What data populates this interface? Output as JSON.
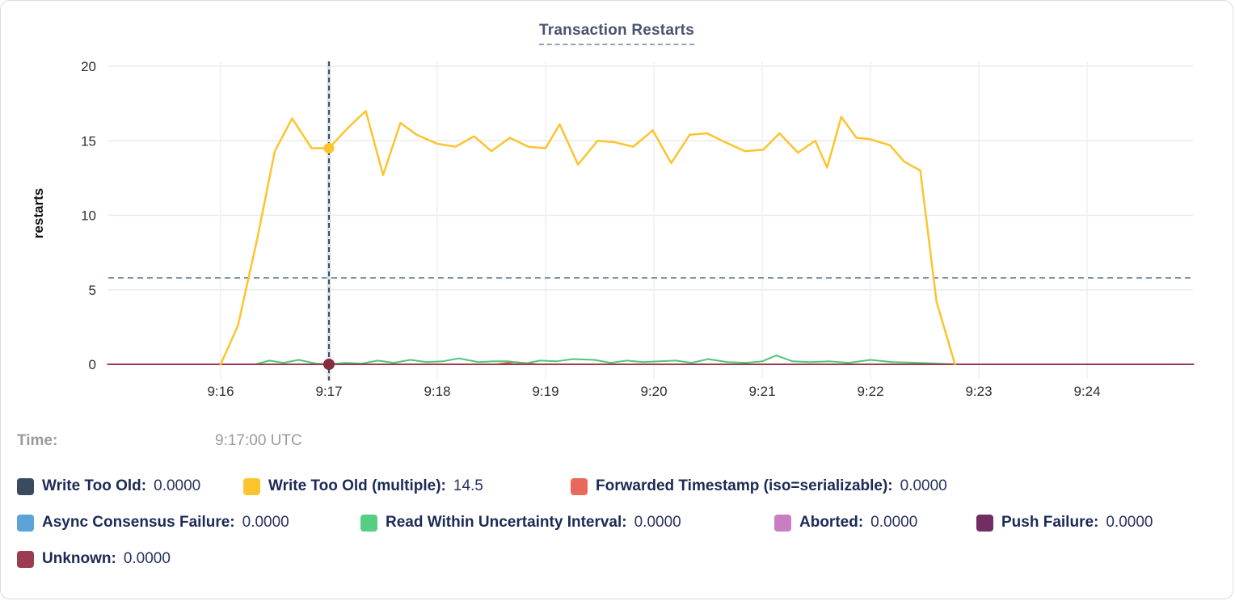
{
  "tooltip": {
    "time_label": "Time:",
    "time_value": "9:17:00 UTC"
  },
  "legend": {
    "rows": [
      {
        "items": [
          {
            "name": "write-too-old",
            "label": "Write Too Old:",
            "value": "0.0000",
            "color": "#3b4a5e"
          },
          {
            "name": "write-too-old-multiple",
            "label": "Write Too Old (multiple):",
            "value": "14.5",
            "color": "#fcc42d"
          },
          {
            "name": "forwarded-timestamp",
            "label": "Forwarded Timestamp (iso=serializable):",
            "value": "0.0000",
            "color": "#e8685c"
          }
        ]
      },
      {
        "items": [
          {
            "name": "async-consensus-failure",
            "label": "Async Consensus Failure:",
            "value": "0.0000",
            "color": "#5ea2da"
          },
          {
            "name": "read-within-uncertainty-interval",
            "label": "Read Within Uncertainty Interval:",
            "value": "0.0000",
            "color": "#57cd82"
          },
          {
            "name": "aborted",
            "label": "Aborted:",
            "value": "0.0000",
            "color": "#c97ec4"
          },
          {
            "name": "push-failure",
            "label": "Push Failure:",
            "value": "0.0000",
            "color": "#722e62"
          }
        ]
      },
      {
        "items": [
          {
            "name": "unknown",
            "label": "Unknown:",
            "value": "0.0000",
            "color": "#9c3c50"
          }
        ]
      }
    ]
  },
  "chart_data": {
    "type": "line",
    "title": "Transaction Restarts",
    "y_axis": {
      "label": "restarts",
      "ticks": [
        0,
        5,
        10,
        15,
        20
      ],
      "range": [
        0,
        20
      ]
    },
    "x_axis": {
      "label": "",
      "ticks": [
        "9:16",
        "9:17",
        "9:18",
        "9:19",
        "9:20",
        "9:21",
        "9:22",
        "9:23",
        "9:24"
      ]
    },
    "grid": true,
    "legend_position": "bottom",
    "threshold_value": 5.8,
    "crosshair": {
      "t": 1,
      "time": "9:17:00 UTC"
    },
    "series": [
      {
        "name": "write-too-old",
        "label": "Write Too Old",
        "color": "#3b4a5e",
        "width": 2,
        "points": [
          [
            -1.04,
            0
          ],
          [
            8.98,
            0
          ]
        ]
      },
      {
        "name": "async-consensus-failure",
        "label": "Async Consensus Failure",
        "color": "#5ea2da",
        "width": 2,
        "points": [
          [
            -1.04,
            0
          ],
          [
            8.98,
            0
          ]
        ]
      },
      {
        "name": "aborted",
        "label": "Aborted",
        "color": "#c97ec4",
        "width": 2,
        "points": [
          [
            -1.04,
            0
          ],
          [
            8.98,
            0
          ]
        ]
      },
      {
        "name": "push-failure",
        "label": "Push Failure",
        "color": "#722e62",
        "width": 2,
        "points": [
          [
            -1.04,
            0
          ],
          [
            8.98,
            0
          ]
        ]
      },
      {
        "name": "forwarded-timestamp",
        "label": "Forwarded Timestamp (iso=serializable)",
        "color": "#e0544c",
        "width": 2,
        "points": [
          [
            -1.04,
            0
          ],
          [
            2.55,
            0
          ],
          [
            2.72,
            0.15
          ],
          [
            2.92,
            0
          ],
          [
            8.98,
            0
          ]
        ]
      },
      {
        "name": "read-within-uncertainty-interval",
        "label": "Read Within Uncertainty Interval",
        "color": "#4dc779",
        "width": 2,
        "points": [
          [
            0.32,
            0
          ],
          [
            0.45,
            0.25
          ],
          [
            0.58,
            0.1
          ],
          [
            0.72,
            0.3
          ],
          [
            0.88,
            0.05
          ],
          [
            1,
            0
          ],
          [
            1.15,
            0.1
          ],
          [
            1.3,
            0.05
          ],
          [
            1.45,
            0.25
          ],
          [
            1.6,
            0.1
          ],
          [
            1.75,
            0.3
          ],
          [
            1.9,
            0.15
          ],
          [
            2.05,
            0.2
          ],
          [
            2.2,
            0.4
          ],
          [
            2.38,
            0.15
          ],
          [
            2.52,
            0.2
          ],
          [
            2.66,
            0.2
          ],
          [
            2.8,
            0.05
          ],
          [
            2.95,
            0.25
          ],
          [
            3.1,
            0.2
          ],
          [
            3.25,
            0.35
          ],
          [
            3.45,
            0.3
          ],
          [
            3.6,
            0.1
          ],
          [
            3.75,
            0.25
          ],
          [
            3.9,
            0.15
          ],
          [
            4.05,
            0.2
          ],
          [
            4.2,
            0.25
          ],
          [
            4.35,
            0.1
          ],
          [
            4.5,
            0.35
          ],
          [
            4.68,
            0.15
          ],
          [
            4.85,
            0.1
          ],
          [
            5,
            0.2
          ],
          [
            5.13,
            0.6
          ],
          [
            5.28,
            0.2
          ],
          [
            5.45,
            0.15
          ],
          [
            5.62,
            0.2
          ],
          [
            5.8,
            0.1
          ],
          [
            6,
            0.3
          ],
          [
            6.2,
            0.15
          ],
          [
            6.45,
            0.1
          ],
          [
            6.78,
            0
          ]
        ]
      },
      {
        "name": "unknown",
        "label": "Unknown",
        "color": "#9c3c50",
        "width": 2,
        "points": [
          [
            -1.04,
            0
          ],
          [
            8.98,
            0
          ]
        ]
      },
      {
        "name": "write-too-old-multiple",
        "label": "Write Too Old (multiple)",
        "color": "#fcc42d",
        "width": 2.5,
        "points": [
          [
            0,
            0
          ],
          [
            0.16,
            2.6
          ],
          [
            0.34,
            8.5
          ],
          [
            0.5,
            14.3
          ],
          [
            0.66,
            16.5
          ],
          [
            0.84,
            14.5
          ],
          [
            1,
            14.5
          ],
          [
            1.18,
            15.9
          ],
          [
            1.34,
            17
          ],
          [
            1.5,
            12.7
          ],
          [
            1.66,
            16.2
          ],
          [
            1.81,
            15.4
          ],
          [
            2,
            14.8
          ],
          [
            2.17,
            14.6
          ],
          [
            2.34,
            15.3
          ],
          [
            2.5,
            14.3
          ],
          [
            2.67,
            15.2
          ],
          [
            2.84,
            14.6
          ],
          [
            3,
            14.5
          ],
          [
            3.13,
            16.1
          ],
          [
            3.3,
            13.4
          ],
          [
            3.48,
            15
          ],
          [
            3.64,
            14.9
          ],
          [
            3.81,
            14.6
          ],
          [
            3.99,
            15.7
          ],
          [
            4.16,
            13.5
          ],
          [
            4.33,
            15.4
          ],
          [
            4.49,
            15.5
          ],
          [
            4.66,
            14.9
          ],
          [
            4.84,
            14.3
          ],
          [
            5.01,
            14.4
          ],
          [
            5.16,
            15.5
          ],
          [
            5.33,
            14.2
          ],
          [
            5.49,
            15
          ],
          [
            5.6,
            13.2
          ],
          [
            5.73,
            16.6
          ],
          [
            5.87,
            15.2
          ],
          [
            6,
            15.1
          ],
          [
            6.18,
            14.7
          ],
          [
            6.31,
            13.6
          ],
          [
            6.46,
            13
          ],
          [
            6.61,
            4.2
          ],
          [
            6.78,
            0
          ]
        ]
      }
    ],
    "highlights": [
      {
        "series": "write-too-old-multiple",
        "t": 1,
        "v": 14.5,
        "color": "#fcc42d",
        "r": 6.5
      },
      {
        "series": "unknown",
        "t": 1,
        "v": 0,
        "color": "#852e40",
        "r": 7
      }
    ]
  }
}
